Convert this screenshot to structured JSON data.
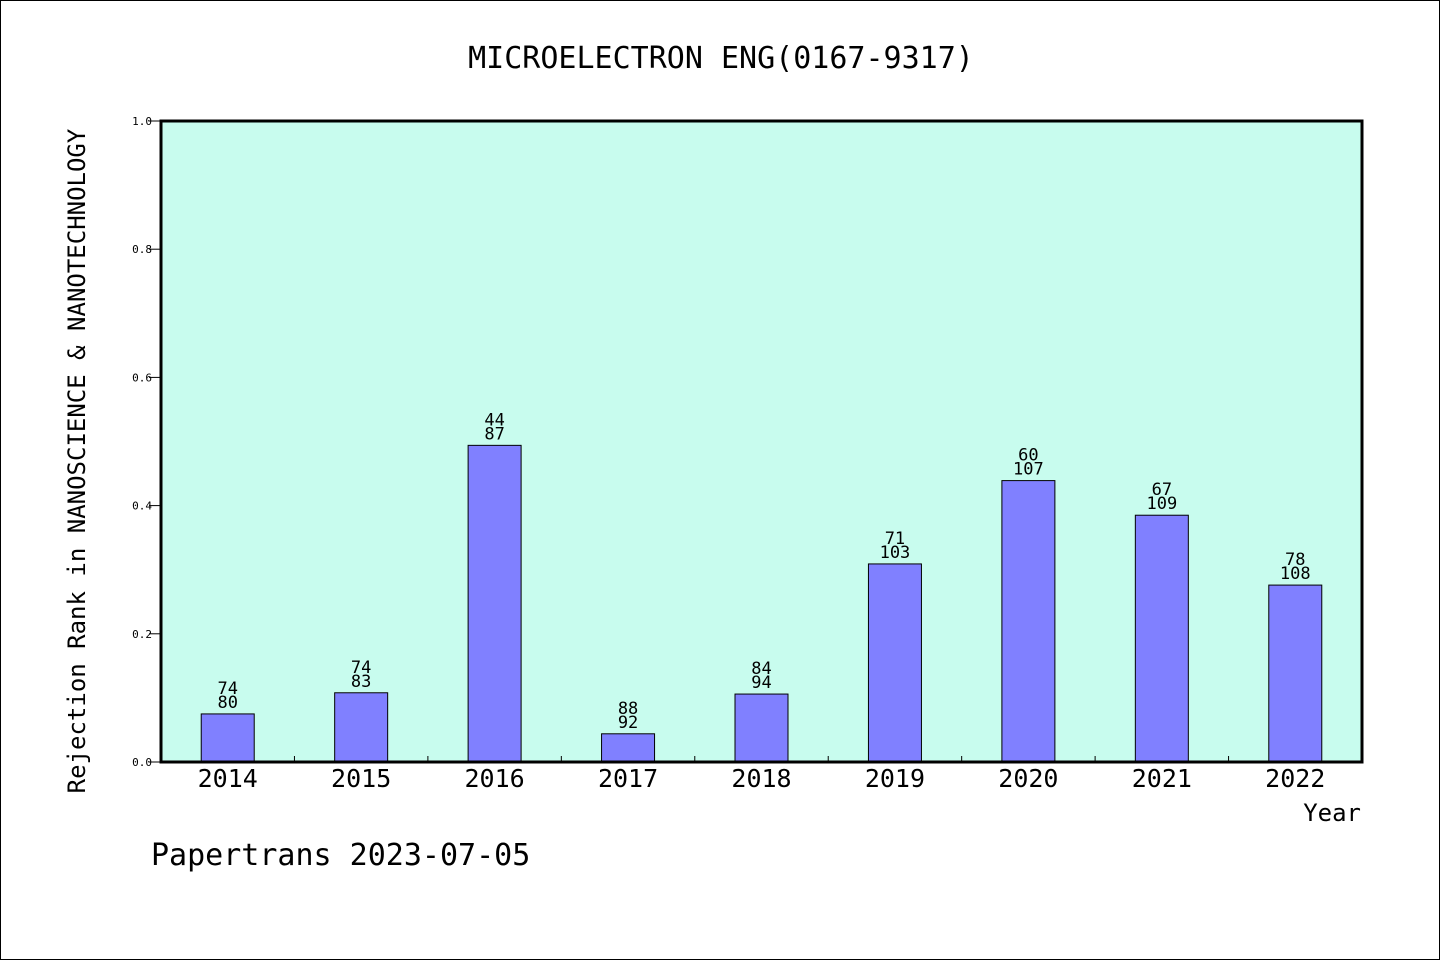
{
  "chart_data": {
    "type": "bar",
    "title": "MICROELECTRON ENG(0167-9317)",
    "xlabel": "Year",
    "ylabel": "Rejection Rank in NANOSCIENCE & NANOTECHNOLOGY",
    "footer": "Papertrans 2023-07-05",
    "categories": [
      "2014",
      "2015",
      "2016",
      "2017",
      "2018",
      "2019",
      "2020",
      "2021",
      "2022"
    ],
    "values": [
      0.075,
      0.108,
      0.494,
      0.044,
      0.106,
      0.309,
      0.439,
      0.385,
      0.276
    ],
    "labels_top": [
      "74",
      "74",
      "44",
      "88",
      "84",
      "71",
      "60",
      "67",
      "78"
    ],
    "labels_bottom": [
      "80",
      "83",
      "87",
      "92",
      "94",
      "103",
      "107",
      "109",
      "108"
    ],
    "ylim": [
      0,
      1.0
    ],
    "yticks": [
      "0.0",
      "0.2",
      "0.4",
      "0.6",
      "0.8",
      "1.0"
    ],
    "grid": false,
    "colors": {
      "plot_background": "#c8fcee",
      "bar_fill": "#8080ff",
      "bar_stroke": "#000000",
      "axis": "#000000"
    }
  }
}
